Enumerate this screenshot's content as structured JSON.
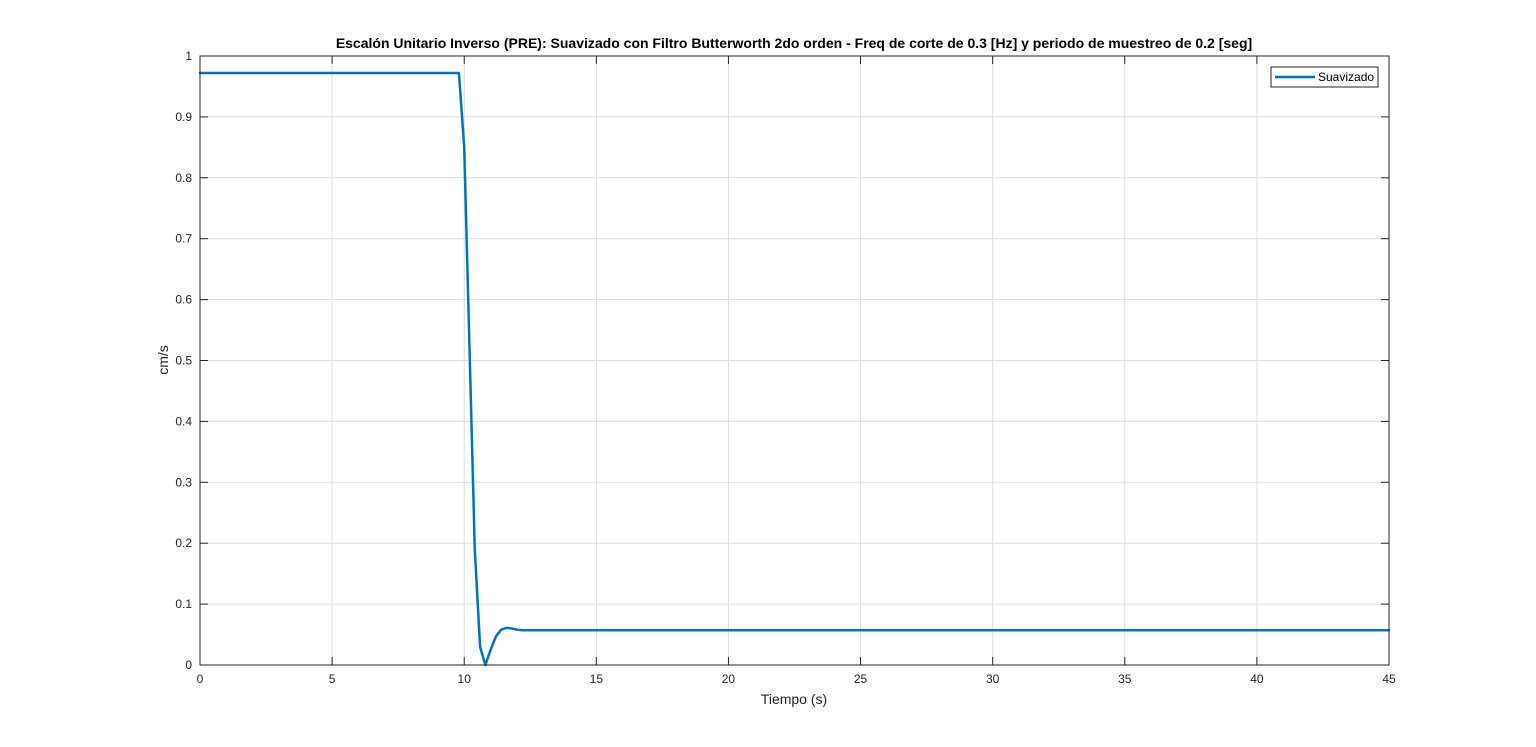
{
  "chart_data": {
    "type": "line",
    "title": "Escalón Unitario Inverso (PRE): Suavizado con Filtro Butterworth 2do orden - Freq de corte de 0.3 [Hz] y periodo de muestreo de 0.2 [seg]",
    "xlabel": "Tiempo (s)",
    "ylabel": "cm/s",
    "xlim": [
      0,
      45
    ],
    "ylim": [
      0,
      1
    ],
    "xticks": [
      0,
      5,
      10,
      15,
      20,
      25,
      30,
      35,
      40,
      45
    ],
    "yticks": [
      0,
      0.1,
      0.2,
      0.3,
      0.4,
      0.5,
      0.6,
      0.7,
      0.8,
      0.9,
      1
    ],
    "xtick_labels": [
      "0",
      "5",
      "10",
      "15",
      "20",
      "25",
      "30",
      "35",
      "40",
      "45"
    ],
    "ytick_labels": [
      "0",
      "0.1",
      "0.2",
      "0.3",
      "0.4",
      "0.5",
      "0.6",
      "0.7",
      "0.8",
      "0.9",
      "1"
    ],
    "grid": true,
    "legend_position": "top-right",
    "series": [
      {
        "name": "Suavizado",
        "color": "#0072BD",
        "x": [
          0,
          9.8,
          10.0,
          10.2,
          10.4,
          10.6,
          10.8,
          11.0,
          11.2,
          11.4,
          11.6,
          11.8,
          12.0,
          12.2,
          12.4,
          12.6,
          13.0,
          15,
          20,
          25,
          30,
          35,
          40,
          45
        ],
        "y": [
          0.972,
          0.972,
          0.85,
          0.52,
          0.19,
          0.03,
          0.0,
          0.025,
          0.047,
          0.058,
          0.061,
          0.06,
          0.058,
          0.057,
          0.057,
          0.057,
          0.057,
          0.057,
          0.057,
          0.057,
          0.057,
          0.057,
          0.057,
          0.057
        ]
      }
    ]
  }
}
